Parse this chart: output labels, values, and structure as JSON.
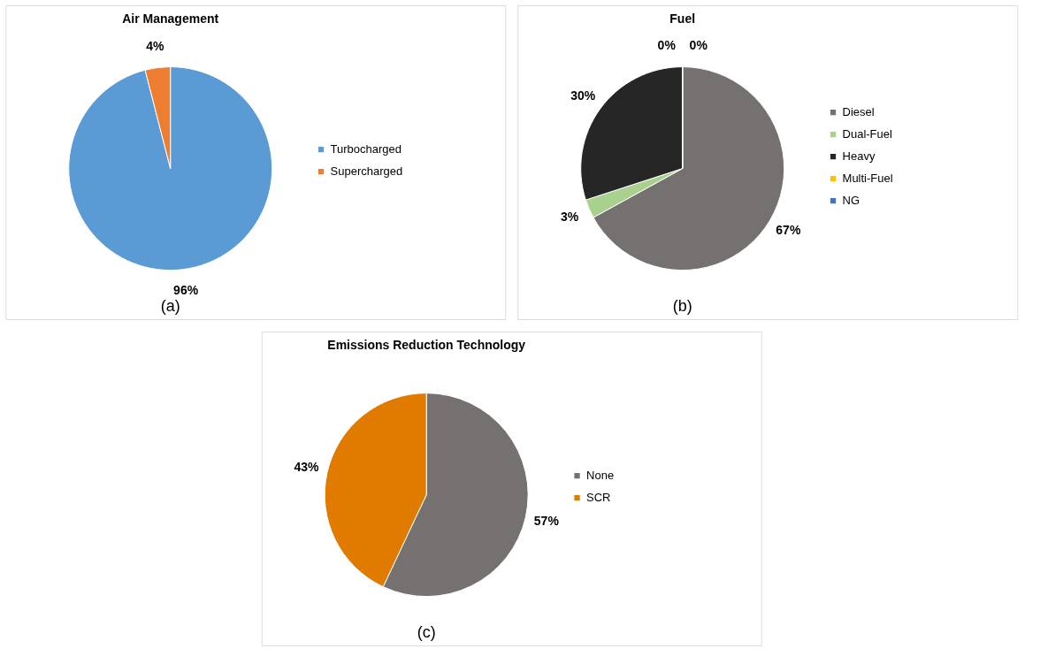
{
  "chart_data": [
    {
      "type": "pie",
      "title": "Air Management",
      "categories": [
        "Turbocharged",
        "Supercharged"
      ],
      "values": [
        96,
        4
      ],
      "colors": [
        "#5b9bd5",
        "#ed7d31"
      ],
      "value_labels": [
        "96%",
        "4%"
      ],
      "legend": "right",
      "annotations": [
        "(a)"
      ]
    },
    {
      "type": "pie",
      "title": "Fuel",
      "categories": [
        "Diesel",
        "Dual-Fuel",
        "Heavy",
        "Multi-Fuel",
        "NG"
      ],
      "values": [
        67,
        3,
        30,
        0,
        0
      ],
      "colors": [
        "#767171",
        "#a9d18e",
        "#262626",
        "#ffc000",
        "#4472c4"
      ],
      "value_labels": [
        "67%",
        "3%",
        "30%",
        "0%",
        "0%"
      ],
      "legend": "right",
      "annotations": [
        "(b)"
      ]
    },
    {
      "type": "pie",
      "title": "Emissions Reduction Technology",
      "categories": [
        "None",
        "SCR"
      ],
      "values": [
        57,
        43
      ],
      "colors": [
        "#767171",
        "#e07b00"
      ],
      "value_labels": [
        "57%",
        "43%"
      ],
      "legend": "right",
      "annotations": [
        "(c)"
      ]
    }
  ]
}
